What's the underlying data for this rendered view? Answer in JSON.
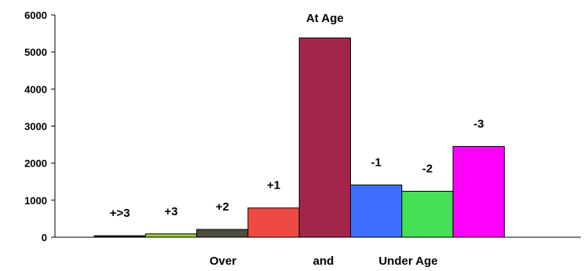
{
  "chart_data": {
    "type": "bar",
    "categories": [
      "+>3",
      "+3",
      "+2",
      "+1",
      "At Age",
      "-1",
      "-2",
      "-3"
    ],
    "values": [
      40,
      90,
      210,
      790,
      5380,
      1410,
      1240,
      2450
    ],
    "colors": [
      "#000000",
      "#99cc33",
      "#4d4d40",
      "#ee4a44",
      "#a3264a",
      "#3d6eff",
      "#44e055",
      "#ff00ff"
    ],
    "ylim": [
      0,
      6000
    ],
    "yticks": [
      0,
      1000,
      2000,
      3000,
      4000,
      5000,
      6000
    ],
    "grid": false,
    "xlabel": "",
    "ylabel": "",
    "x_captions": [
      "Over",
      "and",
      "Under Age"
    ]
  }
}
